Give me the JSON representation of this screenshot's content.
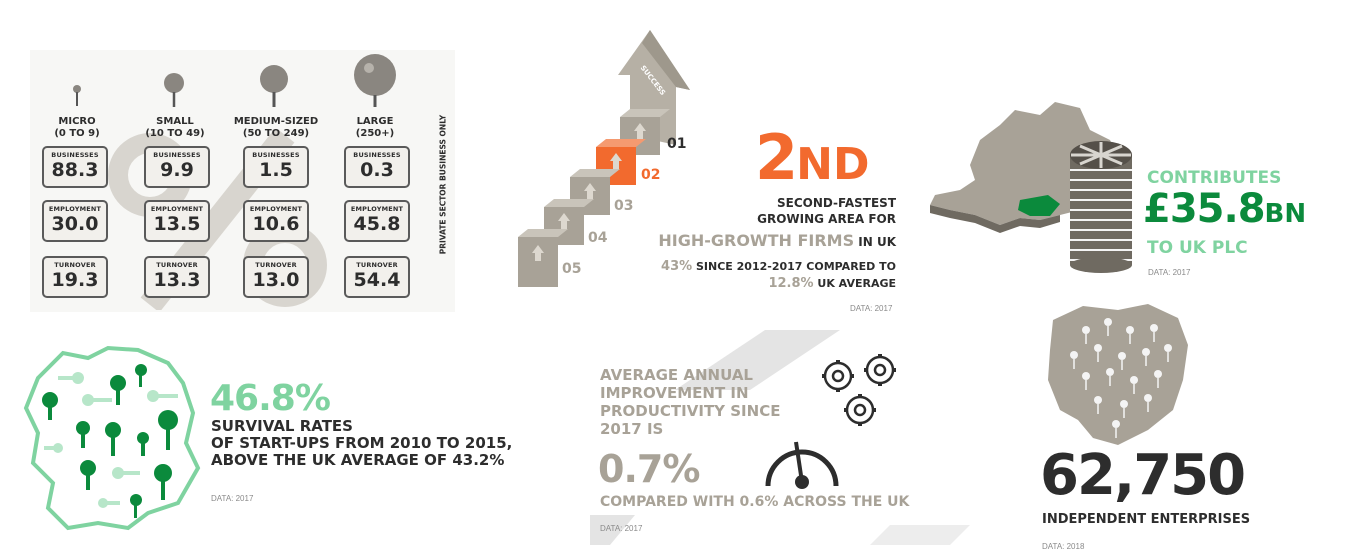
{
  "size_bands": {
    "columns": [
      {
        "name": "MICRO",
        "range": "(0 TO 9)",
        "businesses": "88.3",
        "employment": "30.0",
        "turnover": "19.3"
      },
      {
        "name": "SMALL",
        "range": "(10 TO 49)",
        "businesses": "9.9",
        "employment": "13.5",
        "turnover": "13.3"
      },
      {
        "name": "MEDIUM-SIZED",
        "range": "(50 TO 249)",
        "businesses": "1.5",
        "employment": "10.6",
        "turnover": "13.0"
      },
      {
        "name": "LARGE",
        "range": "(250+)",
        "businesses": "0.3",
        "employment": "45.8",
        "turnover": "54.4"
      }
    ],
    "row_labels": {
      "businesses": "BUSINESSES",
      "employment": "EMPLOYMENT",
      "turnover": "TURNOVER"
    },
    "percent_symbol": "%",
    "side_note": "PRIVATE SECTOR BUSINESS ONLY"
  },
  "growth": {
    "arrow_label": "SUCCESS",
    "steps": [
      "01",
      "02",
      "03",
      "04",
      "05"
    ],
    "rank_number": "2",
    "rank_suffix": "ND",
    "line1": "SECOND-FASTEST",
    "line2": "GROWING AREA FOR",
    "highlight": "HIGH-GROWTH FIRMS",
    "highlight_suffix": " IN UK",
    "pct1": "43%",
    "pct1_text": " SINCE 2012-2017 COMPARED TO",
    "pct2": "12.8%",
    "pct2_text": " UK AVERAGE",
    "note": "DATA: 2017"
  },
  "contribution": {
    "label_top": "CONTRIBUTES",
    "amount": "£35.8",
    "unit": "BN",
    "label_bottom": "TO UK PLC",
    "note": "DATA: 2017"
  },
  "survival": {
    "value": "46.8%",
    "line1": "SURVIVAL RATES",
    "line2": "OF START-UPS FROM 2010 TO 2015,",
    "line3": "ABOVE THE UK AVERAGE OF 43.2%",
    "note": "DATA: 2017"
  },
  "productivity": {
    "line1": "AVERAGE ANNUAL",
    "line2": "IMPROVEMENT IN",
    "line3": "PRODUCTIVITY SINCE",
    "line4": "2017 IS",
    "value": "0.7%",
    "compare": "COMPARED WITH 0.6% ACROSS THE UK",
    "note": "DATA: 2017"
  },
  "enterprises": {
    "value": "62,750",
    "label": "INDEPENDENT ENTERPRISES",
    "note": "DATA: 2018"
  },
  "colors": {
    "green": "#0b8a3c",
    "light_green": "#7fd3a0",
    "orange": "#f26a2e",
    "gray": "#a8a297",
    "dark": "#2d2d2d"
  }
}
